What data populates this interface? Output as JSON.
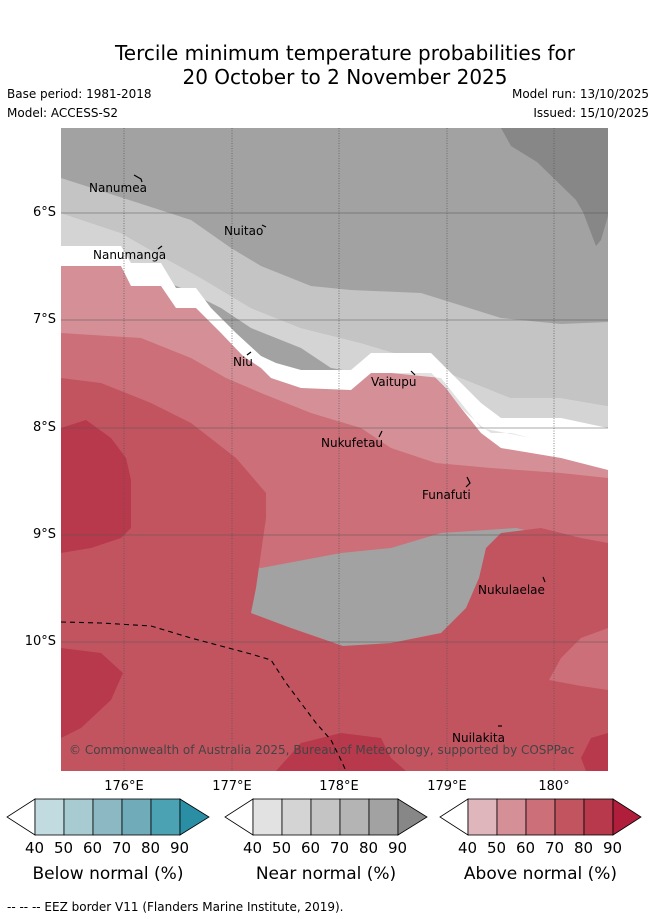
{
  "header": {
    "title_line1": "Tercile minimum temperature probabilities for",
    "title_line2": "20 October to 2 November 2025",
    "base_period": "Base period: 1981-2018",
    "model": "Model: ACCESS-S2",
    "model_run": "Model run: 13/10/2025",
    "issued": "Issued: 15/10/2025"
  },
  "map": {
    "lat_labels": [
      "6°S",
      "7°S",
      "8°S",
      "9°S",
      "10°S"
    ],
    "lon_labels": [
      "176°E",
      "177°E",
      "178°E",
      "179°E",
      "180°"
    ],
    "places": {
      "nanumea": "Nanumea",
      "nuitao": "Nuitao",
      "nanumanga": "Nanumanga",
      "niu": "Niu",
      "vaitupu": "Vaitupu",
      "nukufetau": "Nukufetau",
      "funafuti": "Funafuti",
      "nukulaelae": "Nukulaelae",
      "nuilakita": "Nuilakita"
    },
    "copyright": "© Commonwealth of Australia 2025, Bureau of Meteorology, supported by COSPPac"
  },
  "colorbars": {
    "below": {
      "title": "Below normal (%)",
      "ticks": [
        "40",
        "50",
        "60",
        "70",
        "80",
        "90"
      ],
      "colors": [
        "#ffffff",
        "#c2dbe0",
        "#a8cbd1",
        "#8bb8c3",
        "#6fabb9",
        "#4aa2b2",
        "#2a8ea5"
      ]
    },
    "near": {
      "title": "Near normal (%)",
      "ticks": [
        "40",
        "50",
        "60",
        "70",
        "80",
        "90"
      ],
      "colors": [
        "#ffffff",
        "#e2e2e2",
        "#d4d4d4",
        "#c4c4c4",
        "#b4b4b4",
        "#a2a2a2",
        "#878787"
      ]
    },
    "above": {
      "title": "Above normal (%)",
      "ticks": [
        "40",
        "50",
        "60",
        "70",
        "80",
        "90"
      ],
      "colors": [
        "#ffffff",
        "#e0b6bd",
        "#d59097",
        "#cc6f78",
        "#c25460",
        "#b8394c",
        "#b01e3c"
      ]
    }
  },
  "footnote": "--  --  -- EEZ border V11 (Flanders Marine Institute, 2019)."
}
